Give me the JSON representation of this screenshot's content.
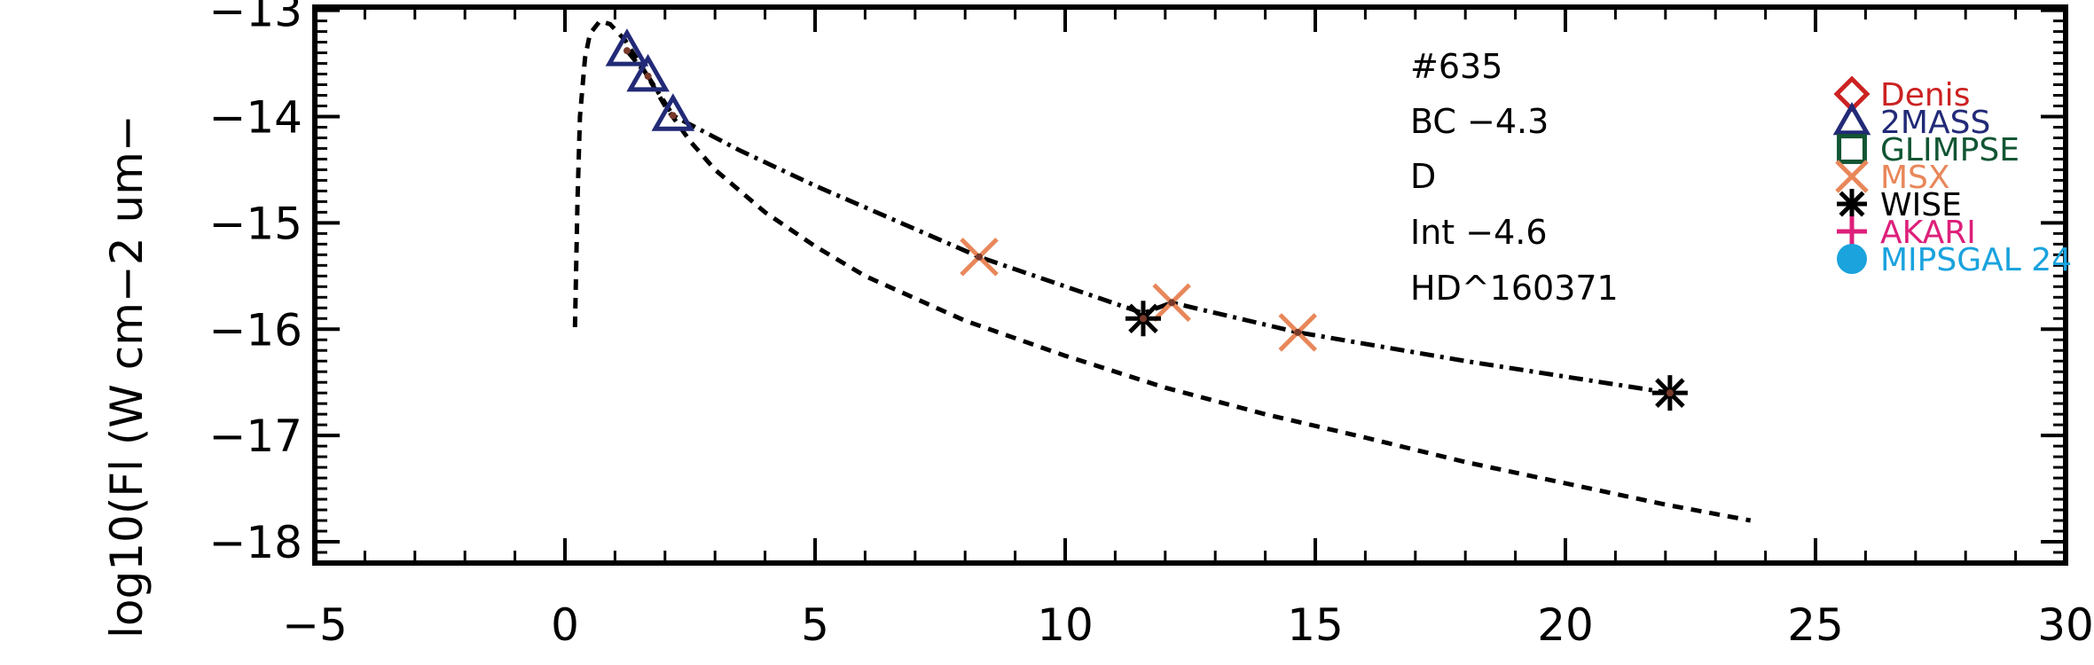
{
  "chart_data": {
    "type": "scatter",
    "title": "",
    "xlabel": "",
    "ylabel": "log10(Fl (W cm−2 um−",
    "xlim": [
      -5,
      30
    ],
    "ylim": [
      -18.2,
      -12.97
    ],
    "x_ticks": [
      -5,
      0,
      5,
      10,
      15,
      20,
      25,
      30
    ],
    "x_tick_labels": [
      "−5",
      "0",
      "5",
      "10",
      "15",
      "20",
      "25",
      "30"
    ],
    "y_ticks": [
      -18,
      -17,
      -16,
      -15,
      -14,
      -13
    ],
    "y_tick_labels": [
      "−18",
      "−17",
      "−16",
      "−15",
      "−14",
      "−13"
    ],
    "annotations": [
      "#635",
      "BC −4.3",
      "D",
      "Int −4.6",
      "HD^160371"
    ],
    "legend": [
      {
        "name": "Denis",
        "marker": "diamond",
        "color": "#cc2222"
      },
      {
        "name": "2MASS",
        "marker": "triangle",
        "color": "#222a77"
      },
      {
        "name": "GLIMPSE",
        "marker": "square",
        "color": "#115533"
      },
      {
        "name": "MSX",
        "marker": "x",
        "color": "#e8875a"
      },
      {
        "name": "WISE",
        "marker": "asterisk",
        "color": "#000000"
      },
      {
        "name": "AKARI",
        "marker": "plus",
        "color": "#dd1f7a"
      },
      {
        "name": "MIPSGAL 24",
        "marker": "circle",
        "color": "#1aa3dd"
      }
    ],
    "legend_placement": "right",
    "series": [
      {
        "name": "2MASS",
        "marker": "triangle",
        "color": "#222a77",
        "x": [
          1.24,
          1.66,
          2.16
        ],
        "y": [
          -13.38,
          -13.62,
          -13.99
        ]
      },
      {
        "name": "MSX",
        "marker": "x",
        "color": "#e8875a",
        "x": [
          8.28,
          12.13,
          14.65
        ],
        "y": [
          -15.32,
          -15.75,
          -16.03
        ]
      },
      {
        "name": "WISE",
        "marker": "asterisk",
        "color": "#000000",
        "x": [
          11.56,
          22.09
        ],
        "y": [
          -15.9,
          -16.6
        ]
      }
    ],
    "curves": [
      {
        "style": "dashed",
        "x": [
          0.2,
          0.25,
          0.3,
          0.4,
          0.5,
          0.7,
          0.9,
          1.2,
          1.6,
          2.0,
          2.5,
          3.0,
          4.0,
          5.0,
          6.0,
          8.0,
          10.0,
          12.0,
          14.0,
          16.0,
          18.0,
          20.0,
          22.0,
          23.7
        ],
        "y": [
          -15.98,
          -14.8,
          -14.0,
          -13.45,
          -13.22,
          -13.1,
          -13.13,
          -13.28,
          -13.58,
          -13.9,
          -14.23,
          -14.5,
          -14.9,
          -15.22,
          -15.5,
          -15.92,
          -16.25,
          -16.55,
          -16.8,
          -17.02,
          -17.25,
          -17.45,
          -17.65,
          -17.8
        ]
      },
      {
        "style": "dash-dot",
        "x": [
          1.24,
          1.66,
          2.16,
          3.5,
          5.0,
          8.28,
          11.56,
          12.13,
          14.65,
          18.0,
          22.09
        ],
        "y": [
          -13.38,
          -13.62,
          -13.99,
          -14.32,
          -14.65,
          -15.32,
          -15.85,
          -15.75,
          -16.03,
          -16.3,
          -16.6
        ]
      }
    ]
  }
}
